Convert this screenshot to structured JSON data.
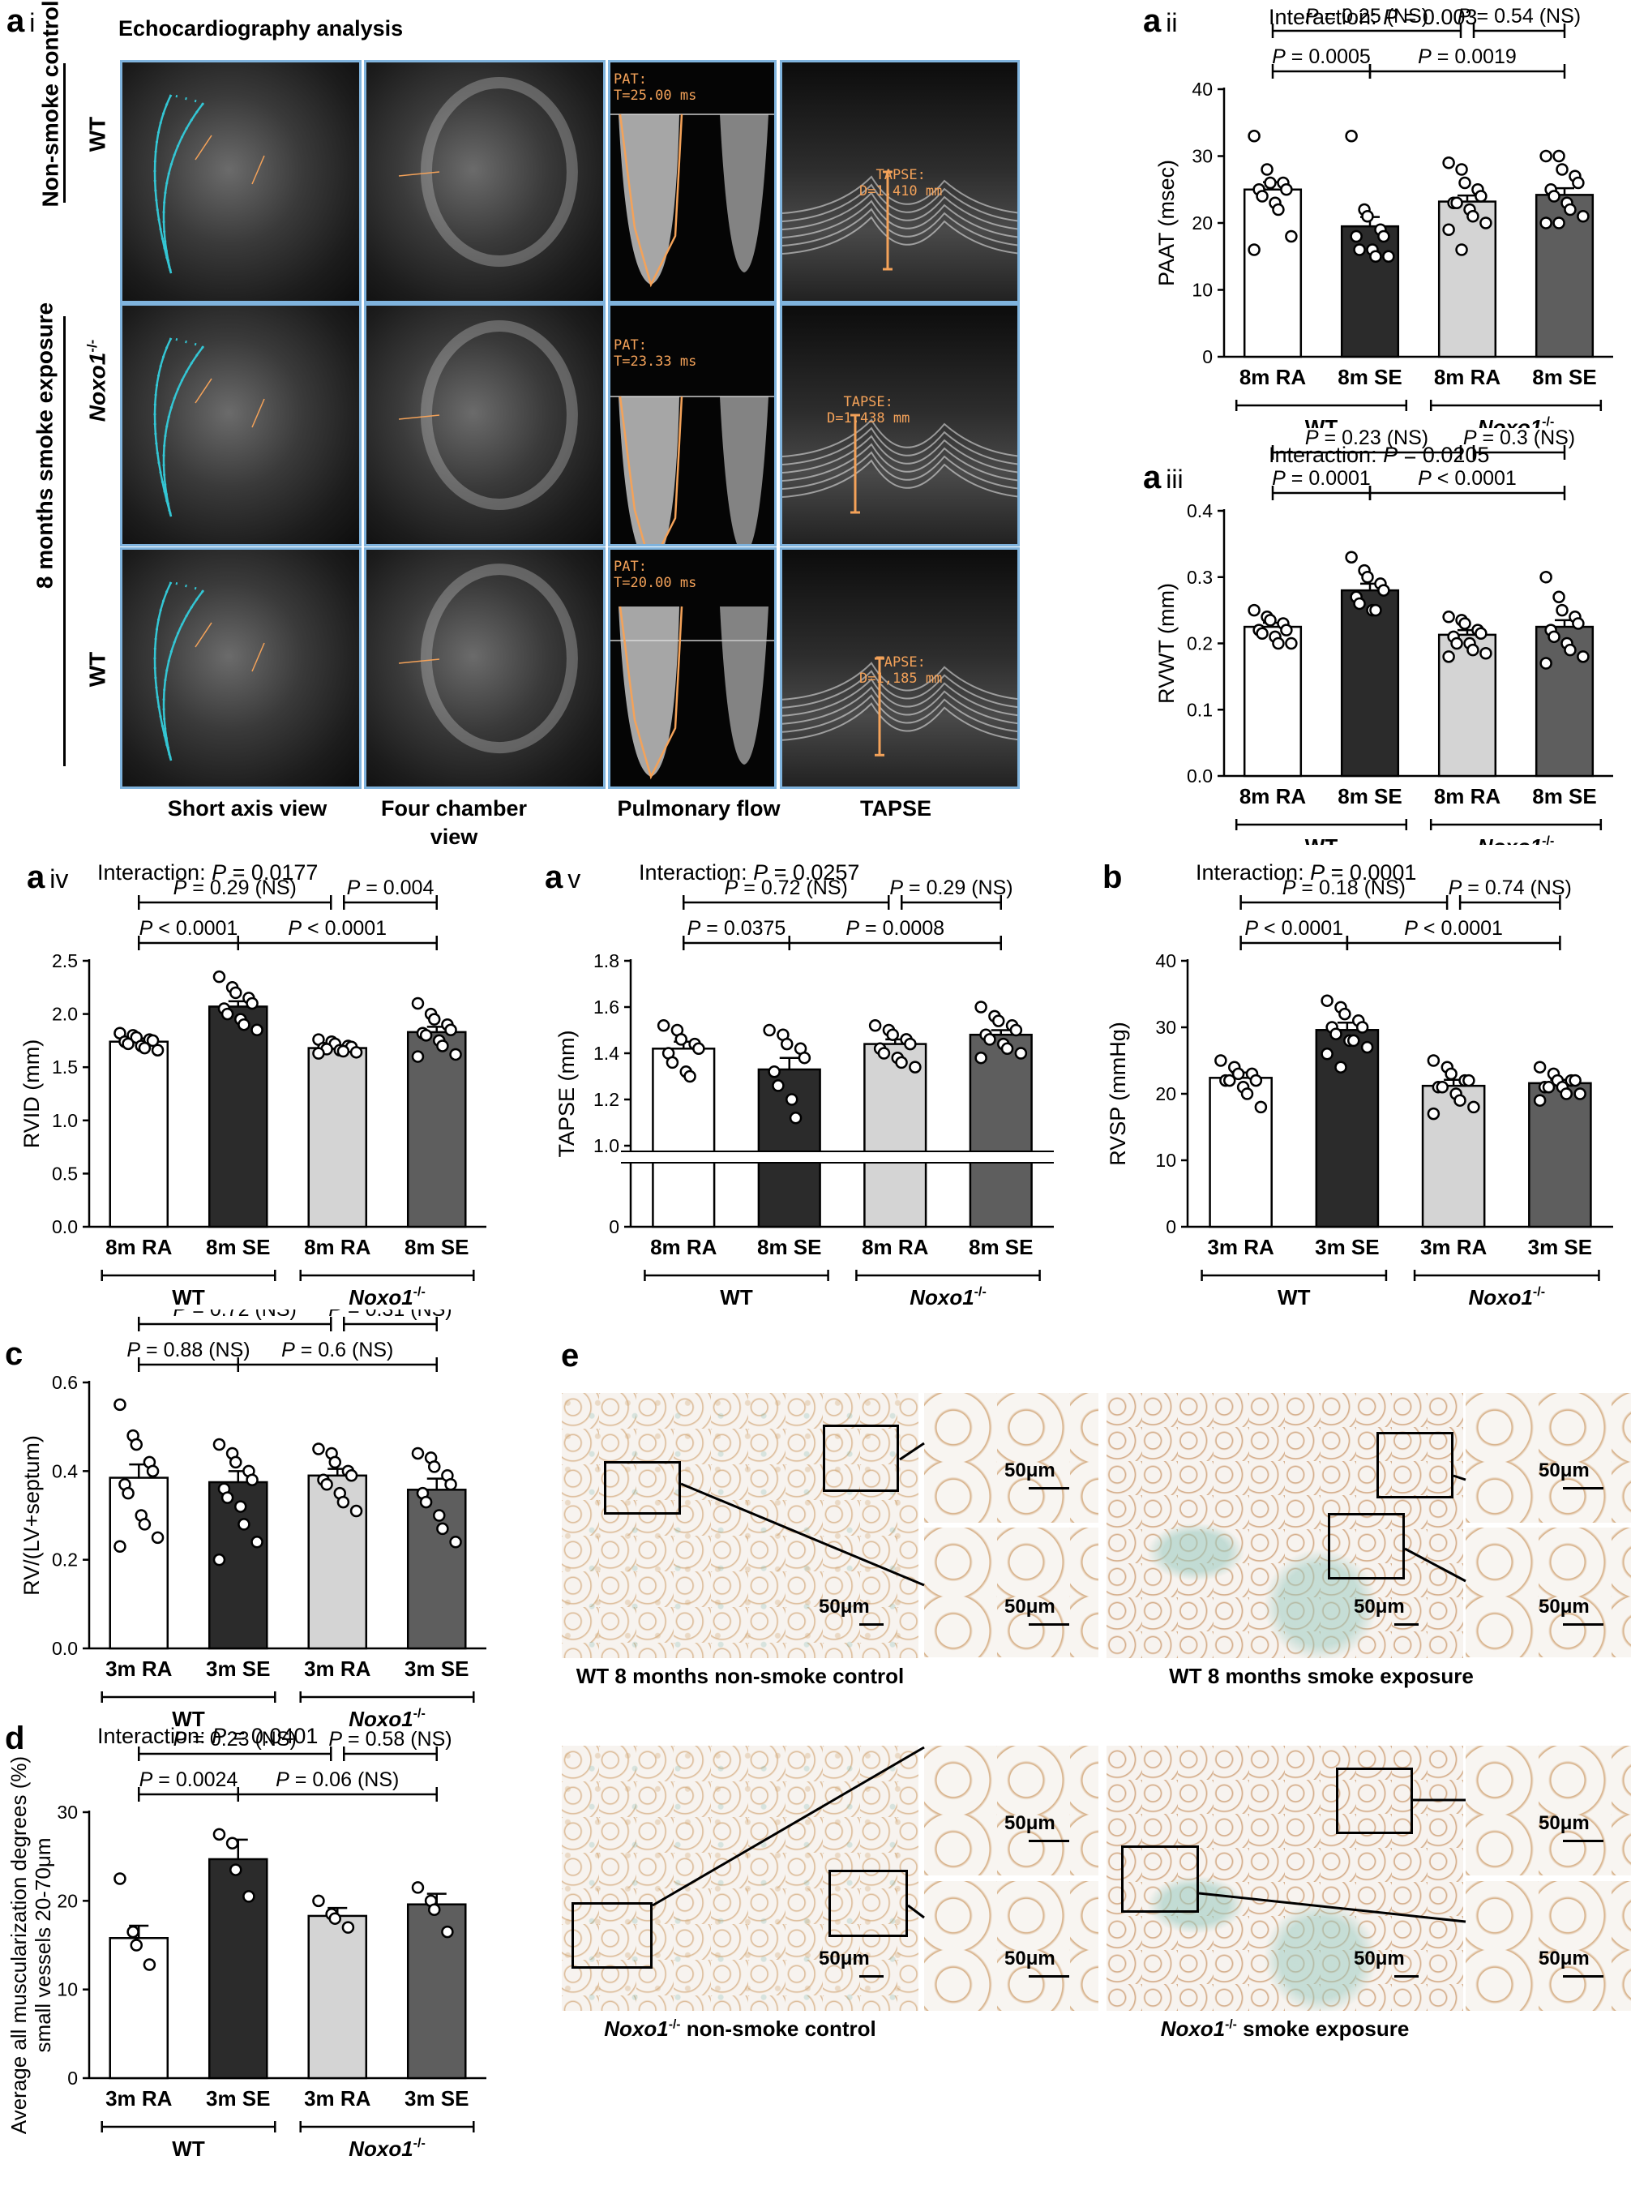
{
  "panel_labels": {
    "a_i": {
      "letter": "a",
      "sub": "i"
    },
    "a_ii": {
      "letter": "a",
      "sub": "ii"
    },
    "a_iii": {
      "letter": "a",
      "sub": "iii"
    },
    "a_iv": {
      "letter": "a",
      "sub": "iv"
    },
    "a_v": {
      "letter": "a",
      "sub": "v"
    },
    "b": {
      "letter": "b",
      "sub": ""
    },
    "c": {
      "letter": "c",
      "sub": ""
    },
    "d": {
      "letter": "d",
      "sub": ""
    },
    "e": {
      "letter": "e",
      "sub": ""
    }
  },
  "echo": {
    "title": "Echocardiography analysis",
    "columns": [
      "Short axis view",
      "Four chamber view",
      "Pulmonary flow",
      "TAPSE"
    ],
    "row_labels": {
      "nonsmoke_group": "Non-smoke control",
      "smoke_group": "8 months smoke exposure",
      "wt": "WT",
      "noxo": "Noxo1",
      "noxo_sup": "-/-"
    },
    "pat": [
      "PAT:",
      "T=25.00 ms",
      "T=23.33 ms",
      "T=20.00 ms"
    ],
    "tapse": [
      "TAPSE:",
      "D=1,410 mm",
      "D=1,438 mm",
      "D=1,185 mm"
    ],
    "tile_colors": {
      "border": "#7fb3dd",
      "trace": "#34c6d4",
      "annot": "#f4a259"
    }
  },
  "charts": {
    "a_ii": {
      "type": "bar",
      "interaction": "Interaction: ",
      "interaction_p": "P = 0.003",
      "ylabel": "PAAT (msec)",
      "ylim": [
        0,
        40
      ],
      "ticks": [
        0,
        10,
        20,
        30,
        40
      ],
      "tick_labels": [
        "0",
        "10",
        "20",
        "30",
        "40"
      ],
      "broken": false,
      "categories": [
        "8m RA",
        "8m SE",
        "8m RA",
        "8m SE"
      ],
      "values": [
        25.0,
        19.5,
        23.2,
        24.2
      ],
      "errors": [
        1.1,
        1.4,
        0.9,
        1.0
      ],
      "points": [
        [
          33,
          28,
          26,
          26,
          25,
          25,
          24,
          23,
          22,
          18,
          16
        ],
        [
          33,
          22,
          21,
          19,
          18,
          18,
          16,
          16,
          15,
          15
        ],
        [
          29,
          28,
          26,
          25,
          24,
          23,
          23,
          22,
          21,
          20,
          19,
          16
        ],
        [
          30,
          30,
          28,
          27,
          26,
          25,
          24,
          23,
          22,
          21,
          20,
          20
        ]
      ],
      "comparisons": [
        {
          "from": 0,
          "to": 1,
          "level": 0,
          "text": "P = 0.0005"
        },
        {
          "from": 1,
          "to": 3,
          "level": 0,
          "text": "P = 0.0019"
        },
        {
          "from": 0,
          "to": 2,
          "level": 1,
          "text": "P = 0.25 (NS)"
        },
        {
          "from": 2,
          "to": 3,
          "level": 1,
          "text": "P = 0.54 (NS)"
        }
      ],
      "groups": [
        "WT",
        "Noxo1"
      ],
      "group_sup": "-/-"
    },
    "a_iii": {
      "type": "bar",
      "interaction": "Interaction: ",
      "interaction_p": "P = 0.0205",
      "ylabel": "RVWT (mm)",
      "ylim": [
        0,
        0.4
      ],
      "ticks": [
        0,
        0.1,
        0.2,
        0.3,
        0.4
      ],
      "tick_labels": [
        "0.0",
        "0.1",
        "0.2",
        "0.3",
        "0.4"
      ],
      "broken": false,
      "categories": [
        "8m RA",
        "8m SE",
        "8m RA",
        "8m SE"
      ],
      "values": [
        0.225,
        0.28,
        0.213,
        0.225
      ],
      "errors": [
        0.006,
        0.01,
        0.007,
        0.01
      ],
      "points": [
        [
          0.25,
          0.24,
          0.235,
          0.23,
          0.22,
          0.22,
          0.215,
          0.21,
          0.2,
          0.2
        ],
        [
          0.33,
          0.31,
          0.3,
          0.29,
          0.28,
          0.27,
          0.26,
          0.25,
          0.25
        ],
        [
          0.24,
          0.235,
          0.23,
          0.22,
          0.215,
          0.21,
          0.2,
          0.2,
          0.19,
          0.185,
          0.18
        ],
        [
          0.3,
          0.27,
          0.25,
          0.24,
          0.23,
          0.22,
          0.21,
          0.2,
          0.19,
          0.18,
          0.17
        ]
      ],
      "comparisons": [
        {
          "from": 0,
          "to": 1,
          "level": 0,
          "text": "P = 0.0001"
        },
        {
          "from": 1,
          "to": 3,
          "level": 0,
          "text": "P < 0.0001"
        },
        {
          "from": 0,
          "to": 2,
          "level": 1,
          "text": "P = 0.23 (NS)"
        },
        {
          "from": 2,
          "to": 3,
          "level": 1,
          "text": "P = 0.3 (NS)"
        }
      ],
      "groups": [
        "WT",
        "Noxo1"
      ],
      "group_sup": "-/-"
    },
    "a_iv": {
      "type": "bar",
      "interaction": "Interaction: ",
      "interaction_p": "P = 0.0177",
      "ylabel": "RVID (mm)",
      "ylim": [
        0,
        2.5
      ],
      "ticks": [
        0,
        0.5,
        1.0,
        1.5,
        2.0,
        2.5
      ],
      "tick_labels": [
        "0.0",
        "0.5",
        "1.0",
        "1.5",
        "2.0",
        "2.5"
      ],
      "broken": false,
      "categories": [
        "8m RA",
        "8m SE",
        "8m RA",
        "8m SE"
      ],
      "values": [
        1.74,
        2.07,
        1.68,
        1.83
      ],
      "errors": [
        0.03,
        0.05,
        0.02,
        0.05
      ],
      "points": [
        [
          1.82,
          1.8,
          1.78,
          1.76,
          1.75,
          1.74,
          1.72,
          1.7,
          1.68,
          1.66
        ],
        [
          2.35,
          2.25,
          2.2,
          2.15,
          2.1,
          2.05,
          2.0,
          1.95,
          1.9,
          1.85
        ],
        [
          1.76,
          1.74,
          1.72,
          1.7,
          1.69,
          1.68,
          1.67,
          1.66,
          1.65,
          1.64,
          1.63
        ],
        [
          2.1,
          2.0,
          1.95,
          1.9,
          1.85,
          1.82,
          1.8,
          1.75,
          1.7,
          1.62,
          1.6
        ]
      ],
      "comparisons": [
        {
          "from": 0,
          "to": 1,
          "level": 0,
          "text": "P < 0.0001"
        },
        {
          "from": 1,
          "to": 3,
          "level": 0,
          "text": "P < 0.0001"
        },
        {
          "from": 0,
          "to": 2,
          "level": 1,
          "text": "P = 0.29 (NS)"
        },
        {
          "from": 2,
          "to": 3,
          "level": 1,
          "text": "P = 0.004"
        }
      ],
      "groups": [
        "WT",
        "Noxo1"
      ],
      "group_sup": "-/-"
    },
    "a_v": {
      "type": "bar",
      "interaction": "Interaction: ",
      "interaction_p": "P = 0.0257",
      "ylabel": "TAPSE (mm)",
      "ylim": [
        1.0,
        1.8
      ],
      "ticks": [
        1.0,
        1.2,
        1.4,
        1.6,
        1.8
      ],
      "tick_labels": [
        "1.0",
        "1.2",
        "1.4",
        "1.6",
        "1.8"
      ],
      "broken": true,
      "zero_label": "0",
      "categories": [
        "8m RA",
        "8m SE",
        "8m RA",
        "8m SE"
      ],
      "values": [
        1.42,
        1.33,
        1.44,
        1.48
      ],
      "errors": [
        0.03,
        0.05,
        0.02,
        0.02
      ],
      "points": [
        [
          1.52,
          1.5,
          1.46,
          1.44,
          1.42,
          1.4,
          1.36,
          1.32,
          1.3
        ],
        [
          1.5,
          1.48,
          1.44,
          1.42,
          1.38,
          1.32,
          1.26,
          1.2,
          1.12
        ],
        [
          1.52,
          1.5,
          1.48,
          1.46,
          1.44,
          1.42,
          1.4,
          1.38,
          1.36,
          1.34
        ],
        [
          1.6,
          1.56,
          1.54,
          1.52,
          1.5,
          1.48,
          1.46,
          1.44,
          1.42,
          1.4,
          1.38
        ]
      ],
      "comparisons": [
        {
          "from": 0,
          "to": 1,
          "level": 0,
          "text": "P = 0.0375"
        },
        {
          "from": 1,
          "to": 3,
          "level": 0,
          "text": "P = 0.0008"
        },
        {
          "from": 0,
          "to": 2,
          "level": 1,
          "text": "P = 0.72 (NS)"
        },
        {
          "from": 2,
          "to": 3,
          "level": 1,
          "text": "P = 0.29 (NS)"
        }
      ],
      "groups": [
        "WT",
        "Noxo1"
      ],
      "group_sup": "-/-"
    },
    "b": {
      "type": "bar",
      "interaction": "Interaction: ",
      "interaction_p": "P = 0.0001",
      "ylabel": "RVSP (mmHg)",
      "ylim": [
        0,
        40
      ],
      "ticks": [
        0,
        10,
        20,
        30,
        40
      ],
      "tick_labels": [
        "0",
        "10",
        "20",
        "30",
        "40"
      ],
      "broken": false,
      "categories": [
        "3m RA",
        "3m SE",
        "3m RA",
        "3m SE"
      ],
      "values": [
        22.4,
        29.6,
        21.2,
        21.6
      ],
      "errors": [
        0.8,
        1.1,
        0.9,
        0.5
      ],
      "points": [
        [
          25,
          24,
          23,
          23,
          22,
          22,
          22,
          21,
          20,
          18
        ],
        [
          34,
          33,
          32,
          31,
          30,
          30,
          29,
          28,
          28,
          27,
          26,
          24
        ],
        [
          25,
          24,
          23,
          22,
          22,
          21,
          21,
          20,
          19,
          18,
          17
        ],
        [
          24,
          23,
          22,
          22,
          22,
          21,
          21,
          21,
          20,
          20,
          19
        ]
      ],
      "comparisons": [
        {
          "from": 0,
          "to": 1,
          "level": 0,
          "text": "P < 0.0001"
        },
        {
          "from": 1,
          "to": 3,
          "level": 0,
          "text": "P < 0.0001"
        },
        {
          "from": 0,
          "to": 2,
          "level": 1,
          "text": "P = 0.18 (NS)"
        },
        {
          "from": 2,
          "to": 3,
          "level": 1,
          "text": "P = 0.74 (NS)"
        }
      ],
      "groups": [
        "WT",
        "Noxo1"
      ],
      "group_sup": "-/-"
    },
    "c": {
      "type": "bar",
      "interaction": "",
      "interaction_p": "",
      "ylabel": "RV/(LV+septum)",
      "ylim": [
        0,
        0.6
      ],
      "ticks": [
        0,
        0.2,
        0.4,
        0.6
      ],
      "tick_labels": [
        "0.0",
        "0.2",
        "0.4",
        "0.6"
      ],
      "broken": false,
      "categories": [
        "3m RA",
        "3m SE",
        "3m RA",
        "3m SE"
      ],
      "values": [
        0.385,
        0.375,
        0.39,
        0.358
      ],
      "errors": [
        0.03,
        0.025,
        0.015,
        0.025
      ],
      "points": [
        [
          0.55,
          0.48,
          0.46,
          0.42,
          0.4,
          0.37,
          0.35,
          0.3,
          0.28,
          0.25,
          0.23
        ],
        [
          0.46,
          0.44,
          0.42,
          0.4,
          0.38,
          0.36,
          0.34,
          0.32,
          0.28,
          0.24,
          0.2
        ],
        [
          0.45,
          0.44,
          0.42,
          0.4,
          0.39,
          0.38,
          0.37,
          0.35,
          0.33,
          0.31
        ],
        [
          0.44,
          0.43,
          0.41,
          0.39,
          0.37,
          0.35,
          0.33,
          0.3,
          0.27,
          0.24
        ]
      ],
      "comparisons": [
        {
          "from": 0,
          "to": 1,
          "level": 0,
          "text": "P = 0.88 (NS)"
        },
        {
          "from": 1,
          "to": 3,
          "level": 0,
          "text": "P = 0.6 (NS)"
        },
        {
          "from": 0,
          "to": 2,
          "level": 1,
          "text": "P = 0.72 (NS)"
        },
        {
          "from": 2,
          "to": 3,
          "level": 1,
          "text": "P = 0.31 (NS)"
        }
      ],
      "groups": [
        "WT",
        "Noxo1"
      ],
      "group_sup": "-/-"
    },
    "d": {
      "type": "bar",
      "interaction": "Interaction: ",
      "interaction_p": "P = 0.0401",
      "ylabel": "Average all muscularization degrees (%)",
      "ylabel2": "small vessels 20-70μm",
      "ylim": [
        0,
        30
      ],
      "ticks": [
        0,
        10,
        20,
        30
      ],
      "tick_labels": [
        "0",
        "10",
        "20",
        "30"
      ],
      "broken": false,
      "categories": [
        "3m RA",
        "3m SE",
        "3m RA",
        "3m SE"
      ],
      "values": [
        15.8,
        24.7,
        18.3,
        19.6
      ],
      "errors": [
        1.4,
        2.2,
        0.9,
        1.2
      ],
      "points": [
        [
          22.5,
          16.5,
          15.0,
          12.8
        ],
        [
          27.5,
          26.5,
          23.5,
          20.5
        ],
        [
          20.0,
          18.5,
          18.0,
          17.0
        ],
        [
          21.5,
          20.0,
          19.0,
          16.5
        ]
      ],
      "comparisons": [
        {
          "from": 0,
          "to": 1,
          "level": 0,
          "text": "P = 0.0024"
        },
        {
          "from": 1,
          "to": 3,
          "level": 0,
          "text": "P = 0.06 (NS)"
        },
        {
          "from": 0,
          "to": 2,
          "level": 1,
          "text": "P = 0.23 (NS)"
        },
        {
          "from": 2,
          "to": 3,
          "level": 1,
          "text": "P = 0.58 (NS)"
        }
      ],
      "groups": [
        "WT",
        "Noxo1"
      ],
      "group_sup": "-/-"
    }
  },
  "chart_data": [
    {
      "panel": "a ii",
      "type": "bar",
      "ylabel": "PAAT (msec)",
      "categories": [
        "WT 8m RA",
        "WT 8m SE",
        "Noxo1-/- 8m RA",
        "Noxo1-/- 8m SE"
      ],
      "values": [
        25.0,
        19.5,
        23.2,
        24.2
      ],
      "ylim": [
        0,
        40
      ]
    },
    {
      "panel": "a iii",
      "type": "bar",
      "ylabel": "RVWT (mm)",
      "categories": [
        "WT 8m RA",
        "WT 8m SE",
        "Noxo1-/- 8m RA",
        "Noxo1-/- 8m SE"
      ],
      "values": [
        0.225,
        0.28,
        0.213,
        0.225
      ],
      "ylim": [
        0,
        0.4
      ]
    },
    {
      "panel": "a iv",
      "type": "bar",
      "ylabel": "RVID (mm)",
      "categories": [
        "WT 8m RA",
        "WT 8m SE",
        "Noxo1-/- 8m RA",
        "Noxo1-/- 8m SE"
      ],
      "values": [
        1.74,
        2.07,
        1.68,
        1.83
      ],
      "ylim": [
        0,
        2.5
      ]
    },
    {
      "panel": "a v",
      "type": "bar",
      "ylabel": "TAPSE (mm)",
      "categories": [
        "WT 8m RA",
        "WT 8m SE",
        "Noxo1-/- 8m RA",
        "Noxo1-/- 8m SE"
      ],
      "values": [
        1.42,
        1.33,
        1.44,
        1.48
      ],
      "ylim": [
        1.0,
        1.8
      ]
    },
    {
      "panel": "b",
      "type": "bar",
      "ylabel": "RVSP (mmHg)",
      "categories": [
        "WT 3m RA",
        "WT 3m SE",
        "Noxo1-/- 3m RA",
        "Noxo1-/- 3m SE"
      ],
      "values": [
        22.4,
        29.6,
        21.2,
        21.6
      ],
      "ylim": [
        0,
        40
      ]
    },
    {
      "panel": "c",
      "type": "bar",
      "ylabel": "RV/(LV+septum)",
      "categories": [
        "WT 3m RA",
        "WT 3m SE",
        "Noxo1-/- 3m RA",
        "Noxo1-/- 3m SE"
      ],
      "values": [
        0.385,
        0.375,
        0.39,
        0.358
      ],
      "ylim": [
        0,
        0.6
      ]
    },
    {
      "panel": "d",
      "type": "bar",
      "ylabel": "Average all muscularization degrees (%) small vessels 20-70μm",
      "categories": [
        "WT 3m RA",
        "WT 3m SE",
        "Noxo1-/- 3m RA",
        "Noxo1-/- 3m SE"
      ],
      "values": [
        15.8,
        24.7,
        18.3,
        19.6
      ],
      "ylim": [
        0,
        30
      ]
    }
  ],
  "style": {
    "bar_fills": [
      "#ffffff",
      "#2b2b2b",
      "#d4d4d4",
      "#5e5e5e"
    ]
  },
  "histology": {
    "scale": "50μm",
    "captions": {
      "wt_ctrl": "WT 8 months non-smoke control",
      "wt_se": "WT 8 months smoke exposure",
      "noxo_italic": "Noxo1",
      "noxo_sup": "-/-",
      "noxo_ctrl": " non-smoke control",
      "noxo_se": " smoke exposure"
    }
  }
}
